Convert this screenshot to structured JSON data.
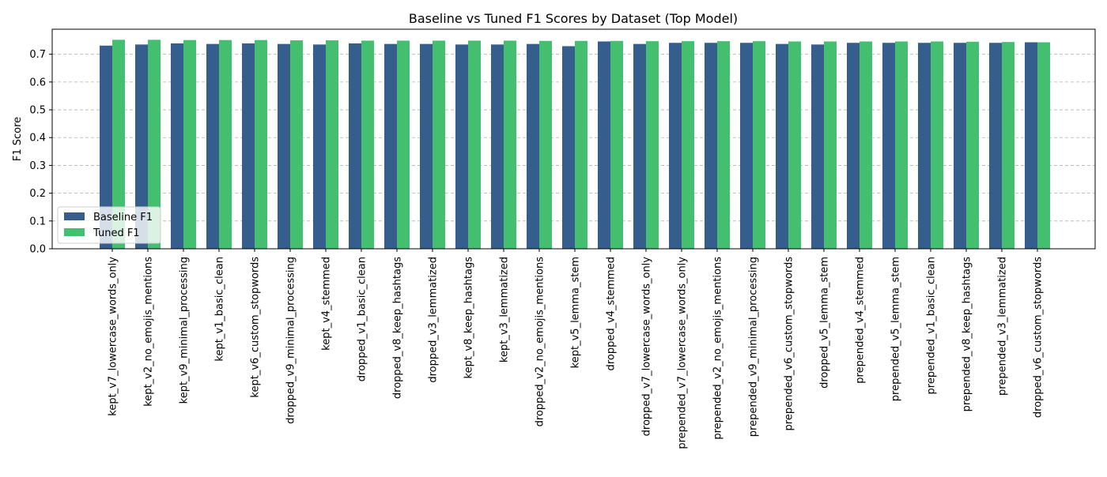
{
  "chart_data": {
    "type": "bar",
    "title": "Baseline vs Tuned F1 Scores by Dataset (Top Model)",
    "xlabel": "",
    "ylabel": "F1 Score",
    "ylim": [
      0,
      0.79
    ],
    "yticks": [
      0.0,
      0.1,
      0.2,
      0.3,
      0.4,
      0.5,
      0.6,
      0.7
    ],
    "ytick_labels": [
      "0.0",
      "0.1",
      "0.2",
      "0.3",
      "0.4",
      "0.5",
      "0.6",
      "0.7"
    ],
    "grid": "y-dashed",
    "legend_position": "bottom-left",
    "categories": [
      "kept_v7_lowercase_words_only",
      "kept_v2_no_emojis_mentions",
      "kept_v9_minimal_processing",
      "kept_v1_basic_clean",
      "kept_v6_custom_stopwords",
      "dropped_v9_minimal_processing",
      "kept_v4_stemmed",
      "dropped_v1_basic_clean",
      "dropped_v8_keep_hashtags",
      "dropped_v3_lemmatized",
      "kept_v8_keep_hashtags",
      "kept_v3_lemmatized",
      "dropped_v2_no_emojis_mentions",
      "kept_v5_lemma_stem",
      "dropped_v4_stemmed",
      "dropped_v7_lowercase_words_only",
      "prepended_v7_lowercase_words_only",
      "prepended_v2_no_emojis_mentions",
      "prepended_v9_minimal_processing",
      "prepended_v6_custom_stopwords",
      "dropped_v5_lemma_stem",
      "prepended_v4_stemmed",
      "prepended_v5_lemma_stem",
      "prepended_v1_basic_clean",
      "prepended_v8_keep_hashtags",
      "prepended_v3_lemmatized",
      "dropped_v6_custom_stopwords"
    ],
    "series": [
      {
        "name": "Baseline F1",
        "color": "#365e8c",
        "values": [
          0.731,
          0.735,
          0.739,
          0.737,
          0.739,
          0.737,
          0.735,
          0.739,
          0.737,
          0.737,
          0.735,
          0.735,
          0.737,
          0.729,
          0.746,
          0.737,
          0.741,
          0.741,
          0.741,
          0.737,
          0.735,
          0.741,
          0.741,
          0.741,
          0.741,
          0.741,
          0.743
        ]
      },
      {
        "name": "Tuned F1",
        "color": "#44bf70",
        "values": [
          0.752,
          0.752,
          0.751,
          0.751,
          0.751,
          0.75,
          0.75,
          0.749,
          0.749,
          0.749,
          0.749,
          0.749,
          0.748,
          0.748,
          0.748,
          0.747,
          0.747,
          0.747,
          0.747,
          0.746,
          0.746,
          0.746,
          0.746,
          0.746,
          0.745,
          0.744,
          0.743
        ]
      }
    ]
  }
}
